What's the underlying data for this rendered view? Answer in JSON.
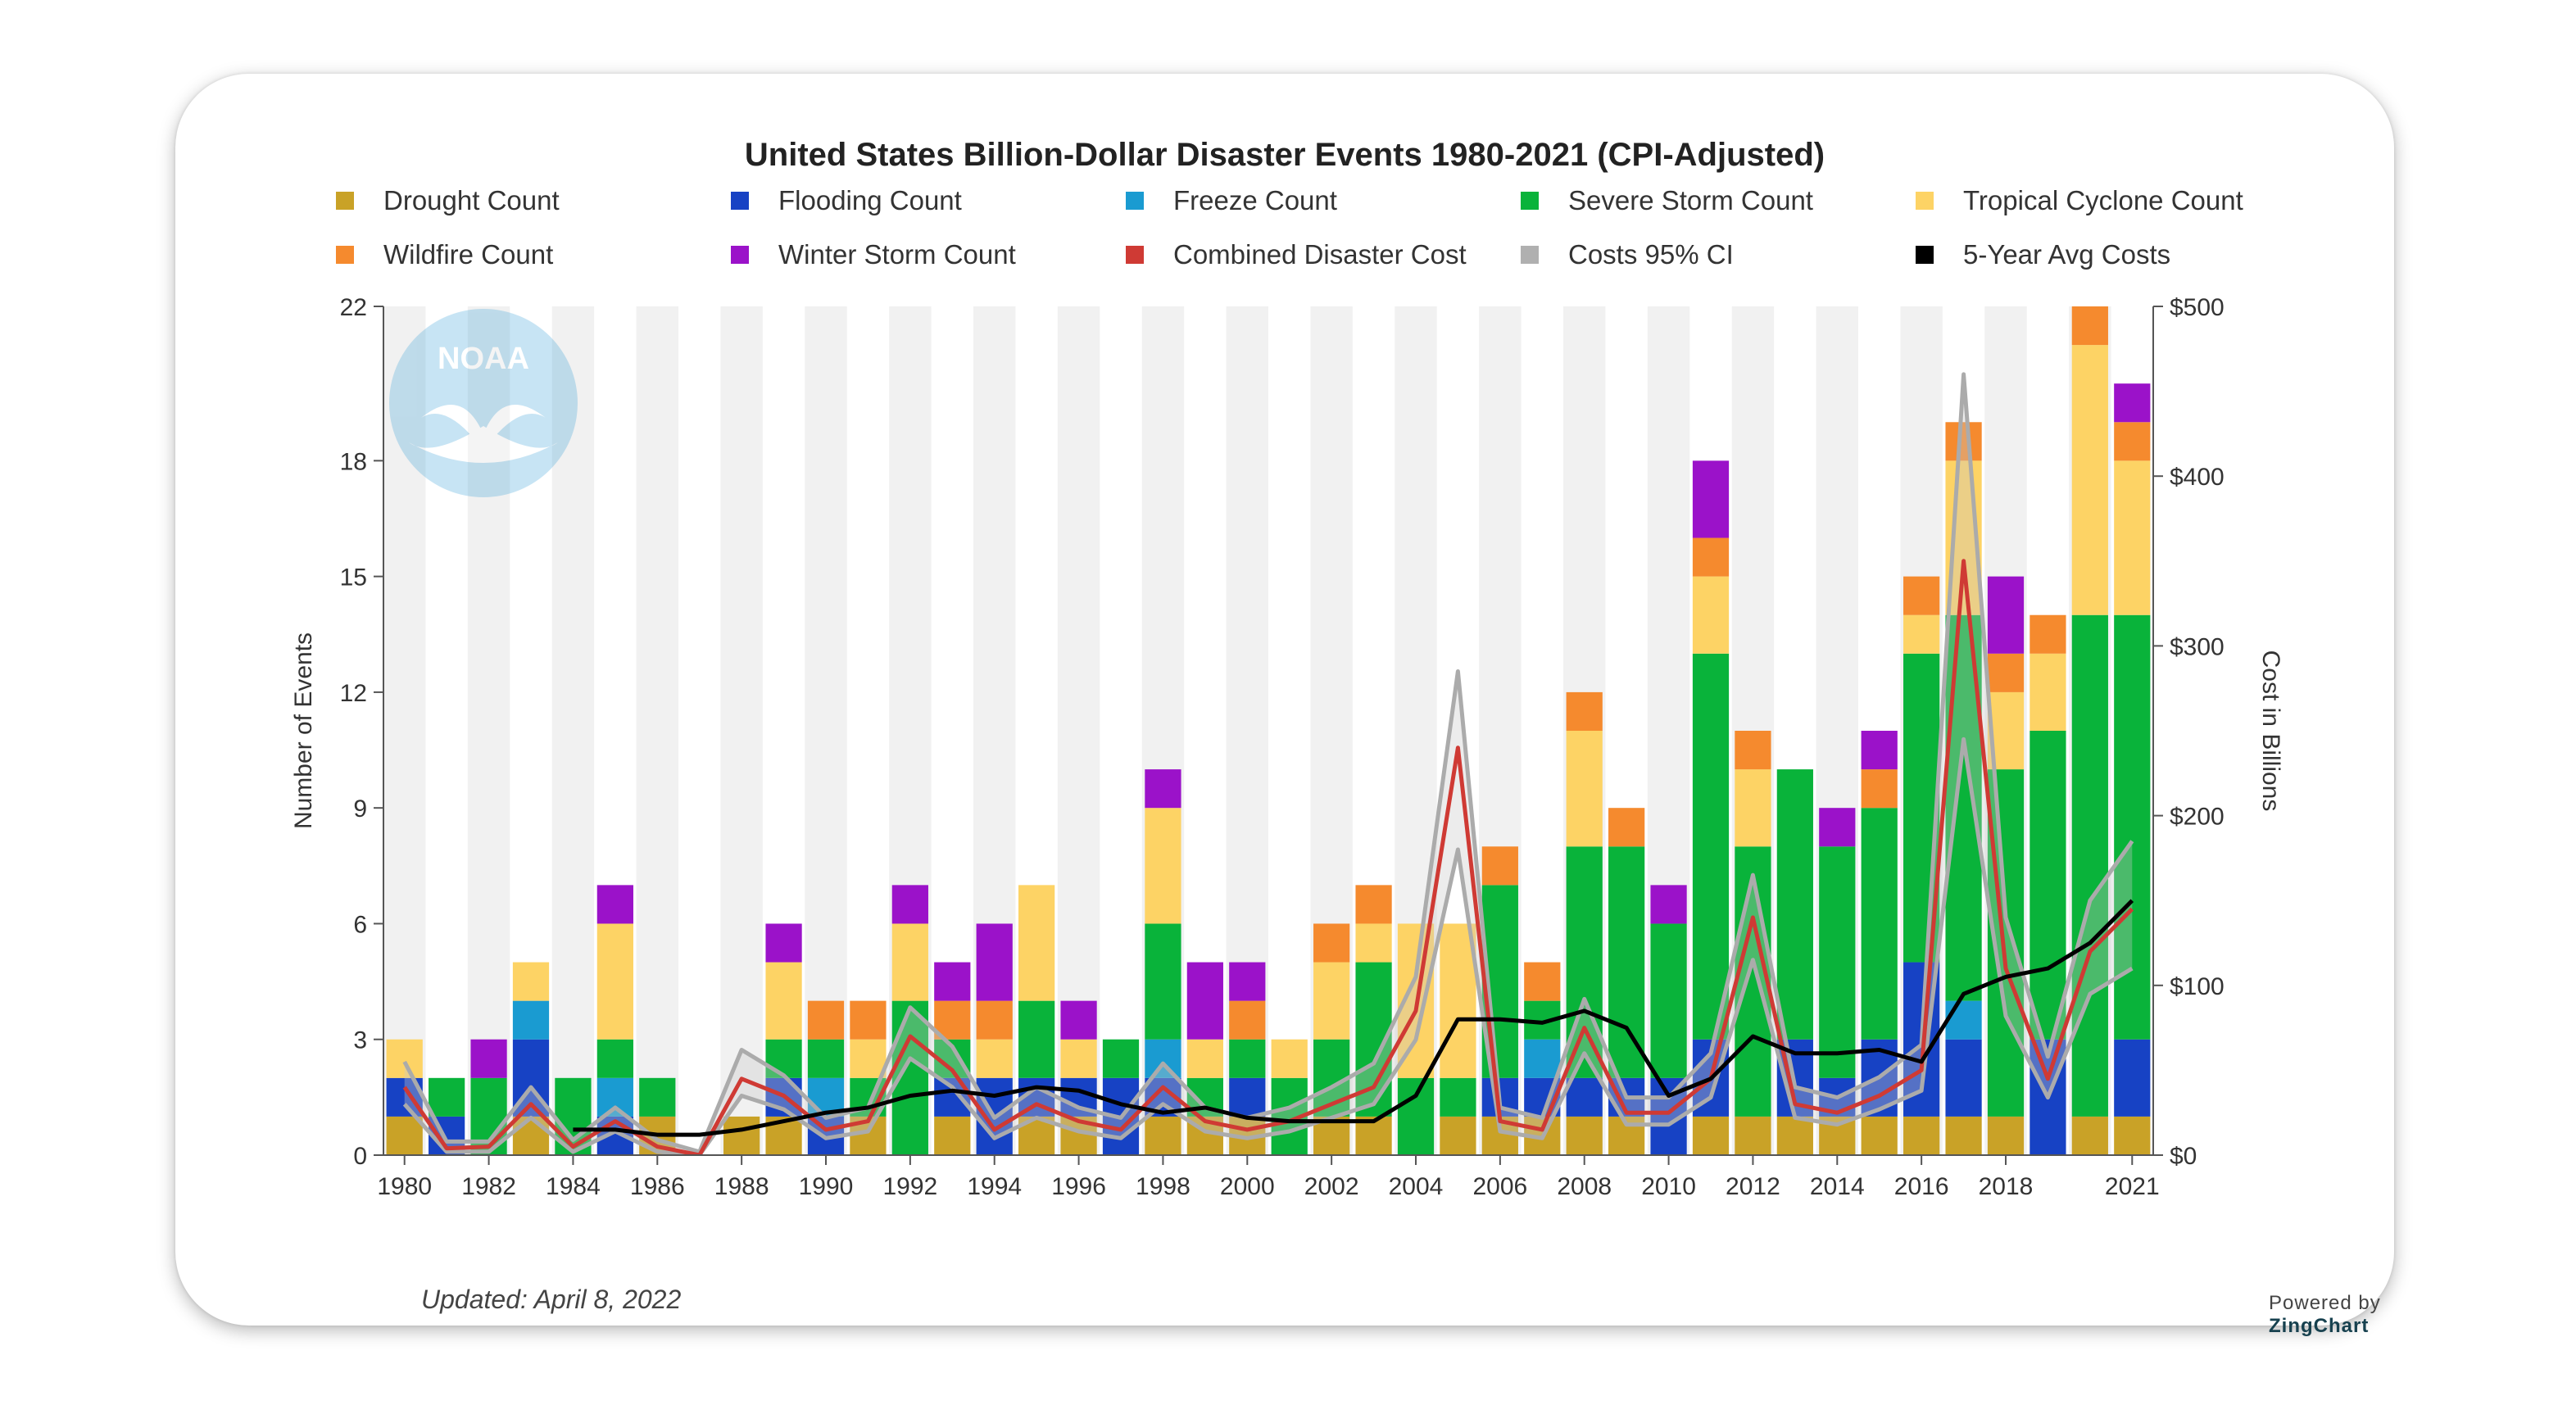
{
  "card": {
    "updated_text": "Updated: April 8, 2022",
    "powered_prefix": "Powered by",
    "powered_brand": "ZingChart",
    "logo_text": "NOAA"
  },
  "chart_data": {
    "type": "bar",
    "title": "United States Billion-Dollar Disaster Events 1980-2021 (CPI-Adjusted)",
    "ylabel": "Number of Events",
    "ylabel_right": "Cost in Billions",
    "ylim": [
      0,
      22
    ],
    "ylim_right": [
      0,
      500
    ],
    "y_ticks": [
      0,
      3,
      6,
      9,
      12,
      15,
      18,
      22
    ],
    "y_tick_labels": [
      "0",
      "3",
      "6",
      "9",
      "12",
      "15",
      "18",
      "22"
    ],
    "y_right_ticks": [
      0,
      100,
      200,
      300,
      400,
      500
    ],
    "y_right_tick_labels": [
      "$0",
      "$100",
      "$200",
      "$300",
      "$400",
      "$500"
    ],
    "x": [
      1980,
      1981,
      1982,
      1983,
      1984,
      1985,
      1986,
      1987,
      1988,
      1989,
      1990,
      1991,
      1992,
      1993,
      1994,
      1995,
      1996,
      1997,
      1998,
      1999,
      2000,
      2001,
      2002,
      2003,
      2004,
      2005,
      2006,
      2007,
      2008,
      2009,
      2010,
      2011,
      2012,
      2013,
      2014,
      2015,
      2016,
      2017,
      2018,
      2019,
      2020,
      2021
    ],
    "x_tick_labels": [
      "1980",
      "1982",
      "1984",
      "1986",
      "1988",
      "1990",
      "1992",
      "1994",
      "1996",
      "1998",
      "2000",
      "2002",
      "2004",
      "2006",
      "2008",
      "2010",
      "2012",
      "2014",
      "2016",
      "2018",
      "2021"
    ],
    "x_tick_years": [
      1980,
      1982,
      1984,
      1986,
      1988,
      1990,
      1992,
      1994,
      1996,
      1998,
      2000,
      2002,
      2004,
      2006,
      2008,
      2010,
      2012,
      2014,
      2016,
      2018,
      2021
    ],
    "legend_placement": "top",
    "series": [
      {
        "name": "Drought Count",
        "color": "#c9a227",
        "values": [
          1,
          0,
          0,
          1,
          0,
          0,
          1,
          0,
          1,
          1,
          0,
          1,
          0,
          1,
          0,
          1,
          1,
          0,
          1,
          1,
          1,
          0,
          1,
          1,
          0,
          1,
          1,
          1,
          1,
          1,
          0,
          1,
          1,
          1,
          1,
          1,
          1,
          1,
          1,
          0,
          1,
          1
        ]
      },
      {
        "name": "Flooding Count",
        "color": "#1742c4",
        "values": [
          1,
          1,
          0,
          2,
          0,
          1,
          0,
          0,
          0,
          1,
          1,
          0,
          0,
          1,
          2,
          1,
          1,
          2,
          1,
          0,
          1,
          0,
          0,
          0,
          0,
          0,
          1,
          1,
          1,
          1,
          2,
          2,
          0,
          2,
          1,
          2,
          4,
          2,
          0,
          3,
          0,
          2
        ]
      },
      {
        "name": "Freeze Count",
        "color": "#1a9bd1",
        "values": [
          0,
          0,
          0,
          1,
          0,
          1,
          0,
          0,
          0,
          0,
          1,
          0,
          0,
          0,
          0,
          0,
          0,
          0,
          1,
          0,
          0,
          0,
          0,
          0,
          0,
          0,
          0,
          1,
          0,
          0,
          0,
          0,
          0,
          0,
          0,
          0,
          0,
          1,
          0,
          0,
          0,
          0
        ]
      },
      {
        "name": "Severe Storm Count",
        "color": "#09b33a",
        "values": [
          0,
          1,
          2,
          0,
          2,
          1,
          1,
          0,
          0,
          1,
          1,
          1,
          4,
          1,
          0,
          2,
          0,
          1,
          3,
          1,
          1,
          2,
          2,
          4,
          2,
          1,
          5,
          1,
          6,
          6,
          4,
          10,
          7,
          7,
          6,
          6,
          8,
          10,
          9,
          8,
          13,
          11
        ]
      },
      {
        "name": "Tropical Cyclone Count",
        "color": "#fdd365",
        "values": [
          1,
          0,
          0,
          1,
          0,
          3,
          0,
          0,
          0,
          2,
          0,
          1,
          2,
          0,
          1,
          3,
          1,
          0,
          3,
          1,
          0,
          1,
          2,
          1,
          4,
          4,
          0,
          0,
          3,
          0,
          0,
          2,
          2,
          0,
          0,
          0,
          1,
          4,
          2,
          2,
          7,
          4
        ]
      },
      {
        "name": "Wildfire Count",
        "color": "#f58a2e",
        "values": [
          0,
          0,
          0,
          0,
          0,
          0,
          0,
          0,
          0,
          0,
          1,
          1,
          0,
          1,
          1,
          0,
          0,
          0,
          0,
          0,
          1,
          0,
          1,
          1,
          0,
          0,
          1,
          1,
          1,
          1,
          0,
          1,
          1,
          0,
          0,
          1,
          1,
          1,
          1,
          1,
          1,
          1
        ]
      },
      {
        "name": "Winter Storm Count",
        "color": "#9b12c9",
        "values": [
          0,
          0,
          1,
          0,
          0,
          1,
          0,
          0,
          0,
          1,
          0,
          0,
          1,
          1,
          2,
          0,
          1,
          0,
          1,
          2,
          1,
          0,
          0,
          0,
          0,
          0,
          0,
          0,
          0,
          0,
          1,
          2,
          0,
          0,
          1,
          1,
          0,
          0,
          2,
          0,
          0,
          1
        ]
      }
    ],
    "lines": [
      {
        "name": "Combined Disaster Cost",
        "color": "#cf3a34",
        "values": [
          40,
          4,
          5,
          30,
          5,
          20,
          5,
          0,
          45,
          35,
          15,
          20,
          70,
          50,
          15,
          30,
          20,
          15,
          40,
          20,
          15,
          20,
          30,
          40,
          85,
          240,
          20,
          15,
          75,
          25,
          25,
          45,
          140,
          30,
          25,
          35,
          50,
          350,
          110,
          45,
          120,
          145
        ]
      },
      {
        "name": "Costs 95% CI",
        "color": "#b0b0b0",
        "lower": [
          30,
          2,
          2,
          22,
          2,
          14,
          2,
          0,
          35,
          27,
          10,
          14,
          57,
          40,
          10,
          22,
          14,
          10,
          30,
          14,
          10,
          14,
          22,
          30,
          68,
          180,
          14,
          10,
          60,
          18,
          18,
          34,
          115,
          22,
          18,
          27,
          38,
          245,
          82,
          34,
          95,
          110
        ],
        "upper": [
          55,
          8,
          8,
          40,
          9,
          28,
          9,
          2,
          62,
          47,
          22,
          28,
          87,
          64,
          22,
          40,
          28,
          22,
          54,
          28,
          22,
          28,
          40,
          54,
          105,
          285,
          28,
          22,
          92,
          34,
          34,
          60,
          165,
          40,
          34,
          46,
          65,
          460,
          140,
          58,
          150,
          185
        ]
      },
      {
        "name": "5-Year Avg Costs",
        "color": "#000000",
        "values": [
          null,
          null,
          null,
          null,
          15,
          15,
          12,
          12,
          15,
          20,
          25,
          28,
          35,
          38,
          35,
          40,
          38,
          30,
          25,
          28,
          22,
          20,
          20,
          20,
          35,
          80,
          80,
          78,
          85,
          75,
          35,
          45,
          70,
          60,
          60,
          62,
          55,
          95,
          105,
          110,
          125,
          150
        ]
      }
    ]
  }
}
